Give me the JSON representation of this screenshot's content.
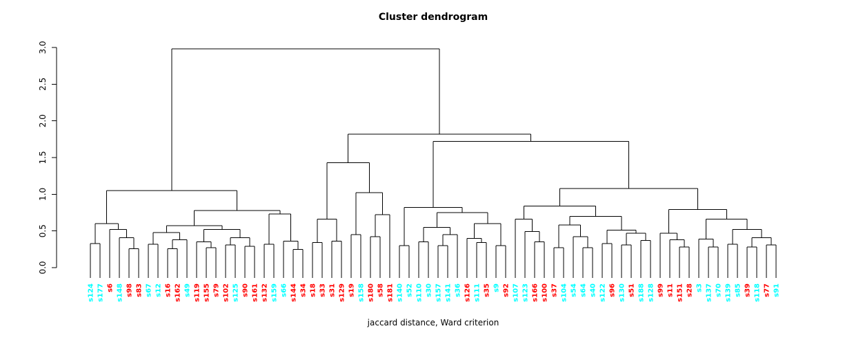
{
  "title": "Cluster dendrogram",
  "xlabel": "jaccard distance, Ward criterion",
  "chart_data": {
    "type": "dendrogram",
    "title": "Cluster dendrogram",
    "xlabel": "jaccard distance, Ward criterion",
    "ylabel": "",
    "y_axis": {
      "min": 0.0,
      "max": 3.0,
      "tick_labels": [
        "0.0",
        "0.5",
        "1.0",
        "1.5",
        "2.0",
        "2.5",
        "3.0"
      ]
    },
    "grid": false,
    "legend": "none",
    "background": "#FFFFFF",
    "line_color": "#000000",
    "axis_color": "#000000",
    "title_color": "#000000",
    "leaf_color_hex": {
      "red": "#FF0000",
      "cyan": "#00FFFF"
    },
    "leaves": [
      {
        "label": "s124",
        "color": "cyan"
      },
      {
        "label": "s177",
        "color": "cyan"
      },
      {
        "label": "s6",
        "color": "red"
      },
      {
        "label": "s148",
        "color": "cyan"
      },
      {
        "label": "s98",
        "color": "red"
      },
      {
        "label": "s83",
        "color": "red"
      },
      {
        "label": "s67",
        "color": "cyan"
      },
      {
        "label": "s12",
        "color": "cyan"
      },
      {
        "label": "s16",
        "color": "red"
      },
      {
        "label": "s162",
        "color": "red"
      },
      {
        "label": "s49",
        "color": "cyan"
      },
      {
        "label": "s119",
        "color": "red"
      },
      {
        "label": "s155",
        "color": "red"
      },
      {
        "label": "s79",
        "color": "red"
      },
      {
        "label": "s102",
        "color": "red"
      },
      {
        "label": "s125",
        "color": "cyan"
      },
      {
        "label": "s90",
        "color": "red"
      },
      {
        "label": "s161",
        "color": "red"
      },
      {
        "label": "s132",
        "color": "red"
      },
      {
        "label": "s159",
        "color": "cyan"
      },
      {
        "label": "s66",
        "color": "cyan"
      },
      {
        "label": "s144",
        "color": "red"
      },
      {
        "label": "s34",
        "color": "red"
      },
      {
        "label": "s18",
        "color": "red"
      },
      {
        "label": "s33",
        "color": "red"
      },
      {
        "label": "s31",
        "color": "red"
      },
      {
        "label": "s129",
        "color": "red"
      },
      {
        "label": "s19",
        "color": "red"
      },
      {
        "label": "s158",
        "color": "cyan"
      },
      {
        "label": "s180",
        "color": "red"
      },
      {
        "label": "s58",
        "color": "red"
      },
      {
        "label": "s181",
        "color": "red"
      },
      {
        "label": "s140",
        "color": "cyan"
      },
      {
        "label": "s52",
        "color": "cyan"
      },
      {
        "label": "s110",
        "color": "cyan"
      },
      {
        "label": "s30",
        "color": "cyan"
      },
      {
        "label": "s157",
        "color": "cyan"
      },
      {
        "label": "s141",
        "color": "cyan"
      },
      {
        "label": "s36",
        "color": "cyan"
      },
      {
        "label": "s126",
        "color": "red"
      },
      {
        "label": "s111",
        "color": "cyan"
      },
      {
        "label": "s35",
        "color": "red"
      },
      {
        "label": "s9",
        "color": "cyan"
      },
      {
        "label": "s92",
        "color": "red"
      },
      {
        "label": "s107",
        "color": "cyan"
      },
      {
        "label": "s123",
        "color": "cyan"
      },
      {
        "label": "s166",
        "color": "red"
      },
      {
        "label": "s100",
        "color": "red"
      },
      {
        "label": "s37",
        "color": "red"
      },
      {
        "label": "s104",
        "color": "cyan"
      },
      {
        "label": "s54",
        "color": "cyan"
      },
      {
        "label": "s64",
        "color": "cyan"
      },
      {
        "label": "s40",
        "color": "cyan"
      },
      {
        "label": "s122",
        "color": "cyan"
      },
      {
        "label": "s96",
        "color": "red"
      },
      {
        "label": "s130",
        "color": "cyan"
      },
      {
        "label": "s51",
        "color": "red"
      },
      {
        "label": "s188",
        "color": "cyan"
      },
      {
        "label": "s128",
        "color": "cyan"
      },
      {
        "label": "s99",
        "color": "red"
      },
      {
        "label": "s11",
        "color": "red"
      },
      {
        "label": "s151",
        "color": "red"
      },
      {
        "label": "s28",
        "color": "red"
      },
      {
        "label": "s3",
        "color": "cyan"
      },
      {
        "label": "s137",
        "color": "cyan"
      },
      {
        "label": "s70",
        "color": "cyan"
      },
      {
        "label": "s139",
        "color": "cyan"
      },
      {
        "label": "s85",
        "color": "cyan"
      },
      {
        "label": "s39",
        "color": "red"
      },
      {
        "label": "s118",
        "color": "cyan"
      },
      {
        "label": "s77",
        "color": "red"
      },
      {
        "label": "s91",
        "color": "cyan"
      }
    ],
    "root": {
      "h": 2.98,
      "c": [
        {
          "h": 1.05,
          "c": [
            {
              "h": 0.6,
              "c": [
                {
                  "h": 0.33,
                  "c": [
                    0,
                    1
                  ]
                },
                {
                  "h": 0.52,
                  "c": [
                    2,
                    {
                      "h": 0.41,
                      "c": [
                        3,
                        {
                          "h": 0.26,
                          "c": [
                            4,
                            5
                          ]
                        }
                      ]
                    }
                  ]
                }
              ]
            },
            {
              "h": 0.78,
              "c": [
                {
                  "h": 0.57,
                  "c": [
                    {
                      "h": 0.48,
                      "c": [
                        {
                          "h": 0.32,
                          "c": [
                            6,
                            7
                          ]
                        },
                        {
                          "h": 0.38,
                          "c": [
                            {
                              "h": 0.26,
                              "c": [
                                8,
                                9
                              ]
                            },
                            10
                          ]
                        }
                      ]
                    },
                    {
                      "h": 0.52,
                      "c": [
                        {
                          "h": 0.35,
                          "c": [
                            11,
                            {
                              "h": 0.27,
                              "c": [
                                12,
                                13
                              ]
                            }
                          ]
                        },
                        {
                          "h": 0.41,
                          "c": [
                            {
                              "h": 0.31,
                              "c": [
                                14,
                                15
                              ]
                            },
                            {
                              "h": 0.29,
                              "c": [
                                16,
                                17
                              ]
                            }
                          ]
                        }
                      ]
                    }
                  ]
                },
                {
                  "h": 0.73,
                  "c": [
                    {
                      "h": 0.32,
                      "c": [
                        18,
                        19
                      ]
                    },
                    {
                      "h": 0.36,
                      "c": [
                        20,
                        {
                          "h": 0.25,
                          "c": [
                            21,
                            22
                          ]
                        }
                      ]
                    }
                  ]
                }
              ]
            }
          ]
        },
        {
          "h": 1.82,
          "c": [
            {
              "h": 1.43,
              "c": [
                {
                  "h": 0.66,
                  "c": [
                    {
                      "h": 0.34,
                      "c": [
                        23,
                        24
                      ]
                    },
                    {
                      "h": 0.36,
                      "c": [
                        25,
                        26
                      ]
                    }
                  ]
                },
                {
                  "h": 1.02,
                  "c": [
                    {
                      "h": 0.45,
                      "c": [
                        27,
                        28
                      ]
                    },
                    {
                      "h": 0.72,
                      "c": [
                        {
                          "h": 0.42,
                          "c": [
                            29,
                            30
                          ]
                        },
                        31
                      ]
                    }
                  ]
                }
              ]
            },
            {
              "h": 1.72,
              "c": [
                {
                  "h": 0.82,
                  "c": [
                    {
                      "h": 0.3,
                      "c": [
                        32,
                        33
                      ]
                    },
                    {
                      "h": 0.75,
                      "c": [
                        {
                          "h": 0.55,
                          "c": [
                            {
                              "h": 0.35,
                              "c": [
                                34,
                                35
                              ]
                            },
                            {
                              "h": 0.45,
                              "c": [
                                {
                                  "h": 0.3,
                                  "c": [
                                    36,
                                    37
                                  ]
                                },
                                38
                              ]
                            }
                          ]
                        },
                        {
                          "h": 0.6,
                          "c": [
                            {
                              "h": 0.4,
                              "c": [
                                39,
                                {
                                  "h": 0.34,
                                  "c": [
                                    40,
                                    41
                                  ]
                                }
                              ]
                            },
                            {
                              "h": 0.3,
                              "c": [
                                42,
                                43
                              ]
                            }
                          ]
                        }
                      ]
                    }
                  ]
                },
                {
                  "h": 1.08,
                  "c": [
                    {
                      "h": 0.84,
                      "c": [
                        {
                          "h": 0.66,
                          "c": [
                            44,
                            {
                              "h": 0.49,
                              "c": [
                                45,
                                {
                                  "h": 0.35,
                                  "c": [
                                    46,
                                    47
                                  ]
                                }
                              ]
                            }
                          ]
                        },
                        {
                          "h": 0.7,
                          "c": [
                            {
                              "h": 0.58,
                              "c": [
                                {
                                  "h": 0.27,
                                  "c": [
                                    48,
                                    49
                                  ]
                                },
                                {
                                  "h": 0.42,
                                  "c": [
                                    50,
                                    {
                                      "h": 0.27,
                                      "c": [
                                        51,
                                        52
                                      ]
                                    }
                                  ]
                                }
                              ]
                            },
                            {
                              "h": 0.51,
                              "c": [
                                {
                                  "h": 0.33,
                                  "c": [
                                    53,
                                    54
                                  ]
                                },
                                {
                                  "h": 0.47,
                                  "c": [
                                    {
                                      "h": 0.31,
                                      "c": [
                                        55,
                                        56
                                      ]
                                    },
                                    {
                                      "h": 0.37,
                                      "c": [
                                        57,
                                        58
                                      ]
                                    }
                                  ]
                                }
                              ]
                            }
                          ]
                        }
                      ]
                    },
                    {
                      "h": 0.79,
                      "c": [
                        {
                          "h": 0.47,
                          "c": [
                            59,
                            {
                              "h": 0.38,
                              "c": [
                                60,
                                {
                                  "h": 0.28,
                                  "c": [
                                    61,
                                    62
                                  ]
                                }
                              ]
                            }
                          ]
                        },
                        {
                          "h": 0.66,
                          "c": [
                            {
                              "h": 0.39,
                              "c": [
                                63,
                                {
                                  "h": 0.28,
                                  "c": [
                                    64,
                                    65
                                  ]
                                }
                              ]
                            },
                            {
                              "h": 0.52,
                              "c": [
                                {
                                  "h": 0.32,
                                  "c": [
                                    66,
                                    67
                                  ]
                                },
                                {
                                  "h": 0.41,
                                  "c": [
                                    {
                                      "h": 0.28,
                                      "c": [
                                        68,
                                        69
                                      ]
                                    },
                                    {
                                      "h": 0.31,
                                      "c": [
                                        70,
                                        71
                                      ]
                                    }
                                  ]
                                }
                              ]
                            }
                          ]
                        }
                      ]
                    }
                  ]
                }
              ]
            }
          ]
        }
      ]
    }
  }
}
